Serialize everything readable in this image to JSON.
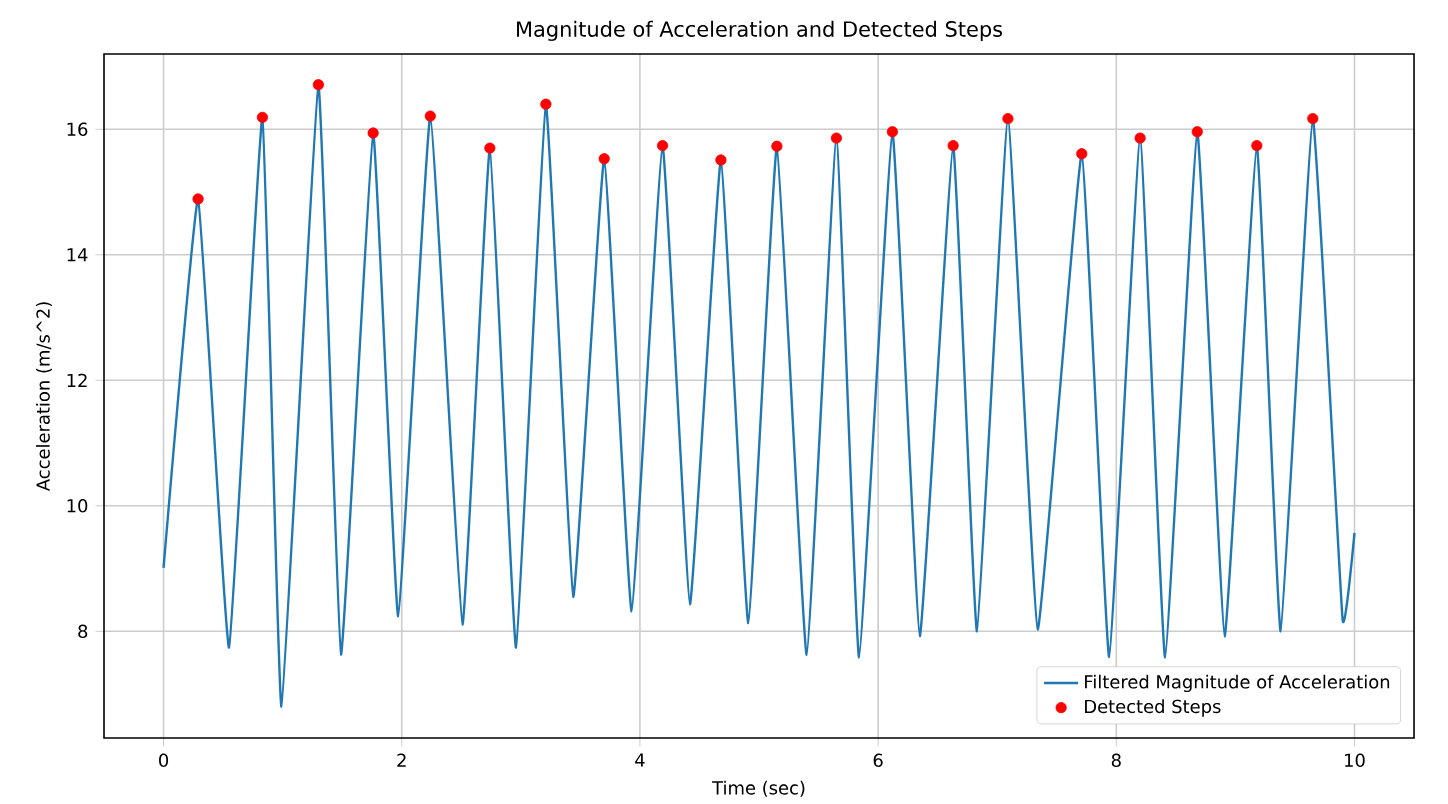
{
  "chart_data": {
    "type": "line",
    "title": "Magnitude of Acceleration and Detected Steps",
    "xlabel": "Time (sec)",
    "ylabel": "Acceleration (m/s^2)",
    "xlim": [
      -0.5,
      10.5
    ],
    "ylim": [
      6.3,
      17.2
    ],
    "xticks": [
      0,
      2,
      4,
      6,
      8,
      10
    ],
    "yticks": [
      8,
      10,
      12,
      14,
      16
    ],
    "grid": true,
    "legend": "bottom right",
    "series": [
      {
        "name": "Filtered Magnitude of Acceleration",
        "color": "#1f77b4",
        "marker": "none",
        "x": [
          0,
          0.29,
          0.55,
          0.83,
          0.99,
          1.3,
          1.49,
          1.76,
          1.97,
          2.24,
          2.51,
          2.74,
          2.96,
          3.21,
          3.44,
          3.7,
          3.93,
          4.19,
          4.42,
          4.68,
          4.91,
          5.15,
          5.4,
          5.65,
          5.84,
          6.12,
          6.35,
          6.63,
          6.83,
          7.09,
          7.34,
          7.71,
          7.94,
          8.2,
          8.41,
          8.68,
          8.91,
          9.18,
          9.38,
          9.65,
          9.9,
          10.0
        ],
        "values": [
          9.01,
          14.89,
          7.74,
          16.19,
          6.8,
          16.71,
          7.63,
          15.94,
          8.24,
          16.21,
          8.11,
          15.7,
          7.74,
          16.4,
          8.55,
          15.53,
          8.32,
          15.74,
          8.43,
          15.51,
          8.13,
          15.73,
          7.62,
          15.86,
          7.58,
          15.96,
          7.92,
          15.74,
          8.0,
          16.17,
          8.03,
          15.61,
          7.59,
          15.86,
          7.58,
          15.96,
          7.92,
          15.74,
          8.0,
          16.17,
          8.19,
          9.57
        ]
      },
      {
        "name": "Detected Steps",
        "type": "scatter",
        "color": "#ff0000",
        "marker": "circle",
        "x": [
          0.29,
          0.83,
          1.3,
          1.76,
          2.24,
          2.74,
          3.21,
          3.7,
          4.19,
          4.68,
          5.15,
          5.65,
          6.12,
          6.63,
          7.09,
          7.71,
          8.2,
          8.68,
          9.18,
          9.65
        ],
        "values": [
          14.89,
          16.19,
          16.71,
          15.94,
          16.21,
          15.7,
          16.4,
          15.53,
          15.74,
          15.51,
          15.73,
          15.86,
          15.96,
          15.74,
          16.17,
          15.61,
          15.86,
          15.96,
          15.74,
          16.17
        ]
      }
    ]
  }
}
